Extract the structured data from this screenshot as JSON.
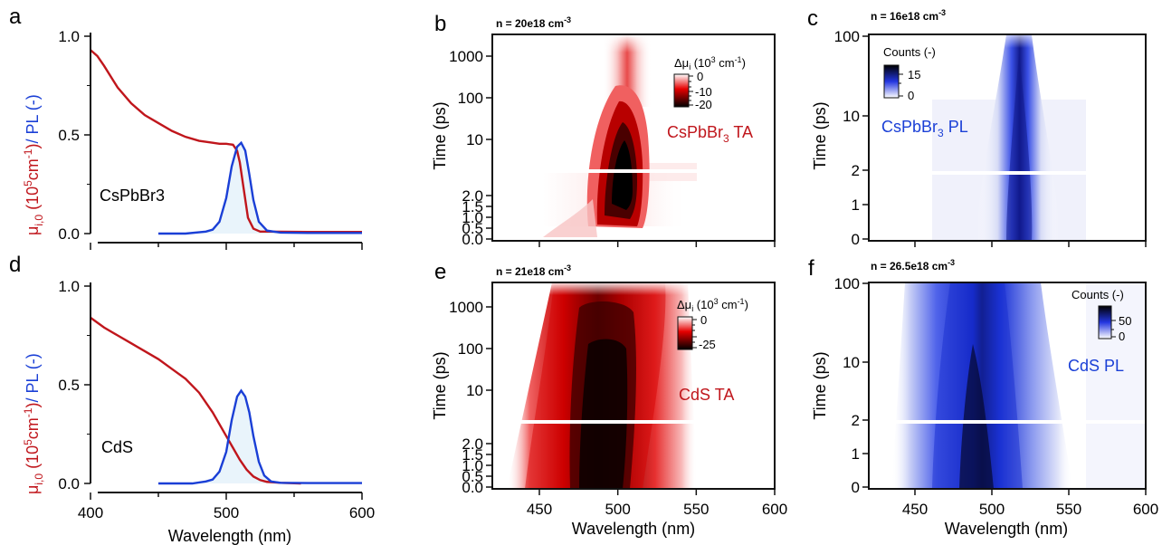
{
  "colors": {
    "red": "#c0161c",
    "blue": "#1a3fd6",
    "fill": "#e9f4fb",
    "axis": "#111111"
  },
  "labels": {
    "x_axis": "Wavelength (nm)",
    "time_axis": "Time (ps)",
    "pl": "/ PL (-)"
  },
  "chart_data": [
    {
      "panel": "a",
      "type": "line",
      "annotation": "CsPbBr3",
      "xlim": [
        400,
        600
      ],
      "ylim": [
        0,
        1.0
      ],
      "xticks": [],
      "yticks": [
        0.0,
        0.5,
        1.0
      ],
      "series": [
        {
          "x": [
            400,
            405,
            410,
            420,
            430,
            440,
            450,
            460,
            470,
            480,
            490,
            495,
            500,
            505,
            508,
            510,
            513,
            516,
            520,
            525,
            530,
            560,
            600
          ],
          "y": [
            0.93,
            0.9,
            0.85,
            0.74,
            0.66,
            0.6,
            0.56,
            0.52,
            0.49,
            0.47,
            0.46,
            0.455,
            0.455,
            0.45,
            0.42,
            0.36,
            0.22,
            0.08,
            0.025,
            0.01,
            0.01,
            0.008,
            0.008
          ]
        },
        {
          "x": [
            450,
            470,
            485,
            490,
            495,
            500,
            504,
            508,
            511,
            514,
            517,
            520,
            524,
            530,
            540,
            560,
            600
          ],
          "y": [
            0.0,
            0.0,
            0.01,
            0.02,
            0.06,
            0.18,
            0.34,
            0.44,
            0.46,
            0.42,
            0.3,
            0.17,
            0.06,
            0.015,
            0.005,
            0.003,
            0.003
          ]
        }
      ]
    },
    {
      "panel": "d",
      "type": "line",
      "annotation": "CdS",
      "xlim": [
        400,
        600
      ],
      "ylim": [
        0,
        1.0
      ],
      "xticks": [
        400,
        500,
        600
      ],
      "yticks": [
        0.0,
        0.5,
        1.0
      ],
      "series": [
        {
          "x": [
            400,
            410,
            420,
            430,
            440,
            450,
            460,
            470,
            480,
            490,
            500,
            505,
            510,
            515,
            520,
            525,
            530,
            540,
            555
          ],
          "y": [
            0.84,
            0.79,
            0.75,
            0.71,
            0.67,
            0.63,
            0.58,
            0.53,
            0.46,
            0.36,
            0.24,
            0.18,
            0.12,
            0.07,
            0.035,
            0.017,
            0.008,
            0.003,
            0.0
          ]
        },
        {
          "x": [
            450,
            475,
            485,
            490,
            495,
            500,
            504,
            508,
            511,
            514,
            517,
            520,
            524,
            528,
            533,
            540,
            560,
            600
          ],
          "y": [
            0.0,
            0.0,
            0.01,
            0.02,
            0.06,
            0.16,
            0.32,
            0.44,
            0.47,
            0.44,
            0.36,
            0.24,
            0.11,
            0.04,
            0.01,
            0.003,
            0.002,
            0.002
          ]
        }
      ]
    },
    {
      "panel": "b",
      "type": "heatmap",
      "density": "n = 20e18 cm",
      "density_exp": "-3",
      "annotation": "CsPbBr",
      "annotation_sub": "3",
      "annotation_tail": " TA",
      "colorbar_title": "Δμ",
      "colorbar_sub": "i",
      "colorbar_unit": " (10",
      "colorbar_unit_exp": "3",
      "colorbar_unit_tail": " cm",
      "colorbar_unit_tail_exp": "-1",
      "colorbar_close": ")",
      "colorbar_ticks": [
        "0",
        "-10",
        "-20"
      ],
      "xlim": [
        420,
        600
      ],
      "xticks": [],
      "yticks_log": [
        "10",
        "100",
        "1000"
      ],
      "yticks_lin": [
        "0.0",
        "0.5",
        "1.0",
        "1.5",
        "2.0"
      ]
    },
    {
      "panel": "e",
      "type": "heatmap",
      "density": "n = 21e18 cm",
      "density_exp": "-3",
      "annotation": "CdS TA",
      "colorbar_title": "Δμ",
      "colorbar_sub": "i",
      "colorbar_unit": " (10",
      "colorbar_unit_exp": "3",
      "colorbar_unit_tail": " cm",
      "colorbar_unit_tail_exp": "-1",
      "colorbar_close": ")",
      "colorbar_ticks": [
        "0",
        "-25"
      ],
      "xlim": [
        420,
        600
      ],
      "xticks": [
        "450",
        "500",
        "550",
        "600"
      ],
      "yticks_log": [
        "10",
        "100",
        "1000"
      ],
      "yticks_lin": [
        "0.0",
        "0.5",
        "1.0",
        "1.5",
        "2.0"
      ]
    },
    {
      "panel": "c",
      "type": "heatmap",
      "density": "n = 16e18 cm",
      "density_exp": "-3",
      "annotation": "CsPbBr",
      "annotation_sub": "3",
      "annotation_tail": " PL",
      "colorbar_title": "Counts (-)",
      "colorbar_ticks": [
        "15",
        "0"
      ],
      "xlim": [
        420,
        600
      ],
      "xticks": [],
      "yticks_log": [
        "10",
        "100"
      ],
      "yticks_lin": [
        "0",
        "1",
        "2"
      ]
    },
    {
      "panel": "f",
      "type": "heatmap",
      "density": "n = 26.5e18 cm",
      "density_exp": "-3",
      "annotation": "CdS PL",
      "colorbar_title": "Counts (-)",
      "colorbar_ticks": [
        "50",
        "0"
      ],
      "xlim": [
        420,
        600
      ],
      "xticks": [
        "450",
        "500",
        "550",
        "600"
      ],
      "yticks_log": [
        "10",
        "100"
      ],
      "yticks_lin": [
        "0",
        "1",
        "2"
      ]
    }
  ],
  "ylabel_left": {
    "mu": "μ",
    "mu_sub": "i,0",
    "unit_open": " (10",
    "unit_exp": "5",
    "unit_mid": "cm",
    "unit_exp2": "-1",
    "unit_close": ")"
  },
  "panel_letters": [
    "a",
    "b",
    "c",
    "d",
    "e",
    "f"
  ]
}
